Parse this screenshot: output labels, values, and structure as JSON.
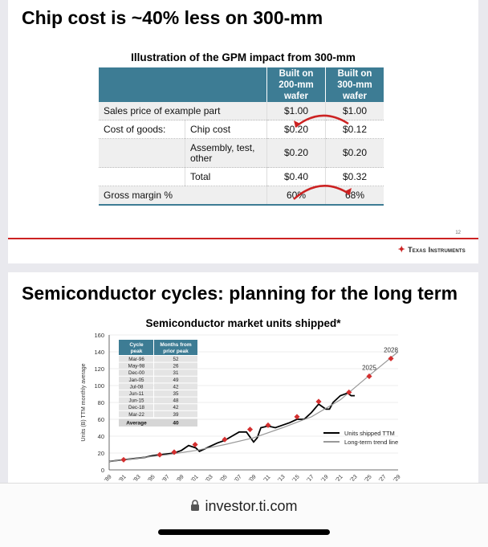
{
  "slide1": {
    "title": "Chip cost is ~40% less on 300-mm",
    "table_title": "Illustration of the GPM impact from 300-mm",
    "columns": [
      "Built on 200-mm wafer",
      "Built on 300-mm wafer"
    ],
    "rows": [
      {
        "label": "Sales price of example part",
        "sub": "",
        "v200": "$1.00",
        "v300": "$1.00"
      },
      {
        "label": "Cost of goods:",
        "sub": "Chip cost",
        "v200": "$0.20",
        "v300": "$0.12"
      },
      {
        "label": "",
        "sub": "Assembly, test, other",
        "v200": "$0.20",
        "v300": "$0.20"
      },
      {
        "label": "",
        "sub": "Total",
        "v200": "$0.40",
        "v300": "$0.32"
      },
      {
        "label": "Gross margin %",
        "sub": "",
        "v200": "60%",
        "v300": "68%"
      }
    ],
    "page_number": "12",
    "logo_text": "Texas Instruments",
    "accent_color": "#cc2222",
    "header_color": "#3d7c94"
  },
  "slide2": {
    "title": "Semiconductor cycles: planning for the long term",
    "chart_data": {
      "type": "line",
      "title": "Semiconductor market units shipped*",
      "ylabel": "Units (B) TTM monthly average",
      "ylim": [
        0,
        160
      ],
      "yticks": [
        0,
        20,
        40,
        60,
        80,
        100,
        120,
        140,
        160
      ],
      "xlim": [
        1989,
        2029
      ],
      "xtick_labels": [
        "'89",
        "'91",
        "'93",
        "'95",
        "'97",
        "'99",
        "'01",
        "'03",
        "'05",
        "'07",
        "'09",
        "'11",
        "'13",
        "'15",
        "'17",
        "'19",
        "'21",
        "'23",
        "'25",
        "'27",
        "'29"
      ],
      "series": [
        {
          "name": "Units shipped TTM",
          "color": "#000000",
          "x": [
            1989,
            1990,
            1991,
            1992,
            1993,
            1994,
            1995,
            1996,
            1997,
            1998,
            1999,
            2000,
            2001,
            2001.5,
            2002,
            2003,
            2004,
            2005,
            2006,
            2007,
            2008,
            2009,
            2009.5,
            2010,
            2011,
            2012,
            2013,
            2014,
            2015,
            2016,
            2017,
            2018,
            2019,
            2019.5,
            2020,
            2021,
            2022,
            2022.5,
            2023
          ],
          "y": [
            10,
            11,
            12,
            13,
            14,
            15,
            17,
            18,
            19,
            20,
            23,
            29,
            26,
            22,
            24,
            28,
            32,
            35,
            40,
            45,
            45,
            33,
            38,
            50,
            52,
            50,
            53,
            56,
            60,
            60,
            68,
            78,
            72,
            72,
            80,
            88,
            91,
            88,
            88
          ]
        },
        {
          "name": "Long-term trend line",
          "color": "#999999",
          "x": [
            1989,
            1993,
            1997,
            2001,
            2005,
            2009,
            2013,
            2017,
            2021,
            2025,
            2029
          ],
          "y": [
            10,
            14,
            18,
            23,
            30,
            38,
            50,
            63,
            83,
            112,
            140
          ]
        }
      ],
      "peaks": {
        "x": [
          1991,
          1996,
          1998,
          2000.9,
          2005,
          2008.5,
          2011,
          2015,
          2018,
          2022.2
        ],
        "y": [
          12,
          18,
          21,
          30,
          36,
          48,
          53,
          63,
          81,
          92
        ]
      },
      "projections": [
        {
          "label": "2025",
          "x": 2025,
          "y": 111
        },
        {
          "label": "2028",
          "x": 2028,
          "y": 132
        }
      ],
      "peak_table": {
        "headers": [
          "Cycle peak",
          "Months from prior peak"
        ],
        "rows": [
          [
            "Mar-96",
            "52"
          ],
          [
            "May-98",
            "26"
          ],
          [
            "Dec-00",
            "31"
          ],
          [
            "Jan-05",
            "49"
          ],
          [
            "Jul-08",
            "42"
          ],
          [
            "Jun-11",
            "35"
          ],
          [
            "Jun-15",
            "48"
          ],
          [
            "Dec-18",
            "42"
          ],
          [
            "Mar-22",
            "39"
          ]
        ],
        "average_label": "Average",
        "average_value": "40"
      }
    }
  },
  "browser": {
    "url": "investor.ti.com"
  }
}
